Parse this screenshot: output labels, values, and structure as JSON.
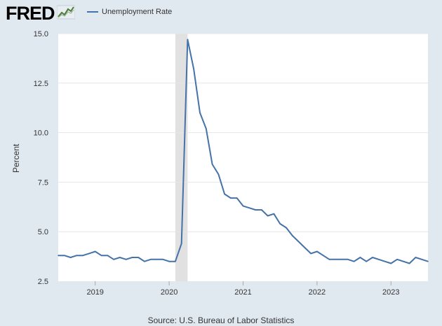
{
  "header": {
    "logo_text": "FRED",
    "logo_mark": "fred-chart-icon",
    "legend_label": "Unemployment Rate"
  },
  "source": "Source: U.S. Bureau of Labor Statistics",
  "colors": {
    "line": "#4572a7",
    "background": "#e1e9f0",
    "plot": "#ffffff",
    "recession": "#e1e1e1",
    "grid": "#e6e6e6"
  },
  "chart_data": {
    "type": "line",
    "title": "",
    "xlabel": "",
    "ylabel": "Percent",
    "ylim": [
      2.5,
      15.0
    ],
    "y_ticks": [
      "2.5",
      "5.0",
      "7.5",
      "10.0",
      "12.5",
      "15.0"
    ],
    "x_ticks": [
      "2019",
      "2020",
      "2021",
      "2022",
      "2023"
    ],
    "xlim": [
      "2018-07",
      "2023-07"
    ],
    "grid": true,
    "legend": "top-left",
    "recession_shading": {
      "start": "2020-02",
      "end": "2020-04"
    },
    "series": [
      {
        "name": "Unemployment Rate",
        "x": [
          "2018-07",
          "2018-08",
          "2018-09",
          "2018-10",
          "2018-11",
          "2018-12",
          "2019-01",
          "2019-02",
          "2019-03",
          "2019-04",
          "2019-05",
          "2019-06",
          "2019-07",
          "2019-08",
          "2019-09",
          "2019-10",
          "2019-11",
          "2019-12",
          "2020-01",
          "2020-02",
          "2020-03",
          "2020-04",
          "2020-05",
          "2020-06",
          "2020-07",
          "2020-08",
          "2020-09",
          "2020-10",
          "2020-11",
          "2020-12",
          "2021-01",
          "2021-02",
          "2021-03",
          "2021-04",
          "2021-05",
          "2021-06",
          "2021-07",
          "2021-08",
          "2021-09",
          "2021-10",
          "2021-11",
          "2021-12",
          "2022-01",
          "2022-02",
          "2022-03",
          "2022-04",
          "2022-05",
          "2022-06",
          "2022-07",
          "2022-08",
          "2022-09",
          "2022-10",
          "2022-11",
          "2022-12",
          "2023-01",
          "2023-02",
          "2023-03",
          "2023-04",
          "2023-05",
          "2023-06",
          "2023-07"
        ],
        "values": [
          3.8,
          3.8,
          3.7,
          3.8,
          3.8,
          3.9,
          4.0,
          3.8,
          3.8,
          3.6,
          3.7,
          3.6,
          3.7,
          3.7,
          3.5,
          3.6,
          3.6,
          3.6,
          3.5,
          3.5,
          4.4,
          14.7,
          13.2,
          11.0,
          10.2,
          8.4,
          7.9,
          6.9,
          6.7,
          6.7,
          6.3,
          6.2,
          6.1,
          6.1,
          5.8,
          5.9,
          5.4,
          5.2,
          4.8,
          4.5,
          4.2,
          3.9,
          4.0,
          3.8,
          3.6,
          3.6,
          3.6,
          3.6,
          3.5,
          3.7,
          3.5,
          3.7,
          3.6,
          3.5,
          3.4,
          3.6,
          3.5,
          3.4,
          3.7,
          3.6,
          3.5
        ]
      }
    ]
  }
}
